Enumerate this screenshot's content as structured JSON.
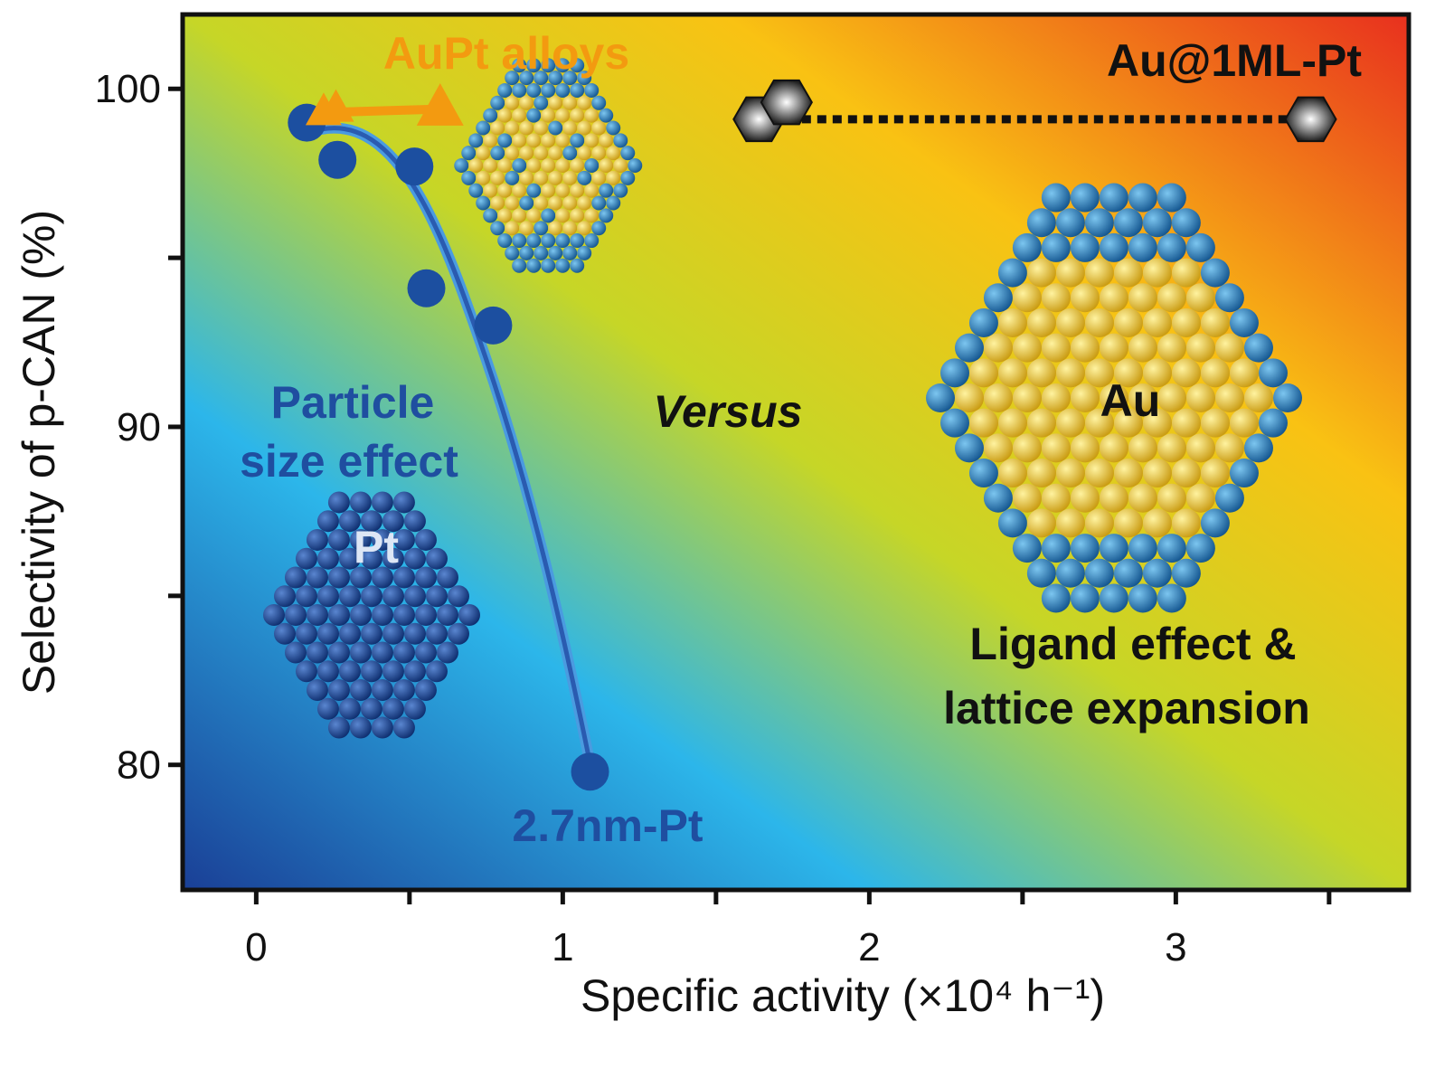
{
  "chart_data": {
    "type": "scatter",
    "title": "",
    "xlabel": "Specific activity (×10⁴ h⁻¹)",
    "ylabel": "Selectivity of p-CAN (%)",
    "xlim": [
      -0.24,
      3.76
    ],
    "ylim": [
      76.3,
      102.2
    ],
    "x_ticks": [
      "0",
      "1",
      "2",
      "3"
    ],
    "y_ticks": [
      "80",
      "90",
      "100"
    ],
    "grid": false,
    "series": [
      {
        "marker": "circle",
        "color": "#1c4fa0",
        "x": [
          0.165,
          0.265,
          0.516,
          0.555,
          0.773,
          1.089
        ],
        "y": [
          99.0,
          97.9,
          97.7,
          94.1,
          93.0,
          79.8
        ]
      },
      {
        "marker": "triangle",
        "color": "#f39a10",
        "x": [
          0.22,
          0.26,
          0.6
        ],
        "y": [
          99.3,
          99.4,
          99.4
        ]
      },
      {
        "marker": "hexagon",
        "color": "#333333",
        "x": [
          1.64,
          1.73,
          3.44
        ],
        "y": [
          99.1,
          99.6,
          99.1
        ]
      }
    ],
    "annotations": {
      "aupt": "AuPt alloys",
      "au1ml": "Au@1ML-Pt",
      "particle1": "Particle",
      "particle2": "size effect",
      "pt": "Pt",
      "versus": "Versus",
      "au": "Au",
      "ligand1": "Ligand effect &",
      "ligand2": "lattice expansion",
      "pt27": "2.7nm-Pt"
    },
    "colors": {
      "gradient": [
        "#1a3f96",
        "#2cb6ea",
        "#c6d627",
        "#f9c213",
        "#e8301e"
      ],
      "pt_curve": "#2a5bb0",
      "aupt_line": "#f39a10",
      "au_atom": "#e8c53a",
      "pt_atom": "#2a7fb8"
    }
  }
}
